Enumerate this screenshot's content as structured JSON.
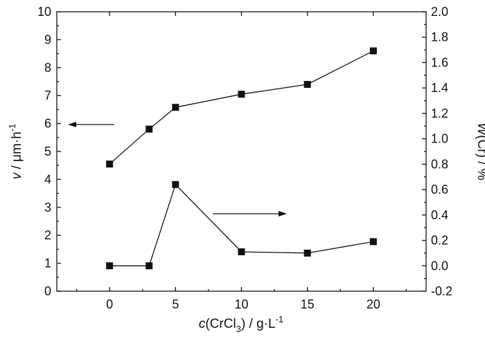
{
  "chart_data": {
    "type": "line",
    "x": [
      0,
      3,
      5,
      10,
      15,
      20
    ],
    "xlim": [
      -4,
      24
    ],
    "xticks": [
      0,
      5,
      10,
      15,
      20
    ],
    "ylim_left": [
      0,
      10
    ],
    "yticks_left": [
      0,
      1,
      2,
      3,
      4,
      5,
      6,
      7,
      8,
      9,
      10
    ],
    "ylim_right": [
      -0.2,
      2.0
    ],
    "yticks_right": [
      "-0.2",
      "0.0",
      "0.2",
      "0.4",
      "0.6",
      "0.8",
      "1.0",
      "1.2",
      "1.4",
      "1.6",
      "1.8",
      "2.0"
    ],
    "xlabel": {
      "italic": "c",
      "main": "(CrCl",
      "sub": "3",
      "rest": ") / g·L",
      "sup": "-1"
    },
    "ylabel_left": {
      "italic": "v",
      "main": " / μm·h",
      "sup": "-1"
    },
    "ylabel_right": {
      "italic": "W",
      "main": "(Cr) / %"
    },
    "series": [
      {
        "name": "v",
        "axis": "left",
        "values": [
          4.55,
          5.8,
          6.58,
          7.05,
          7.4,
          8.6
        ]
      },
      {
        "name": "W(Cr)",
        "axis": "right",
        "values": [
          0.0,
          0.0,
          0.64,
          0.11,
          0.1,
          0.19
        ]
      }
    ],
    "arrows": [
      {
        "series": "v",
        "direction": "left"
      },
      {
        "series": "W(Cr)",
        "direction": "right"
      }
    ]
  }
}
